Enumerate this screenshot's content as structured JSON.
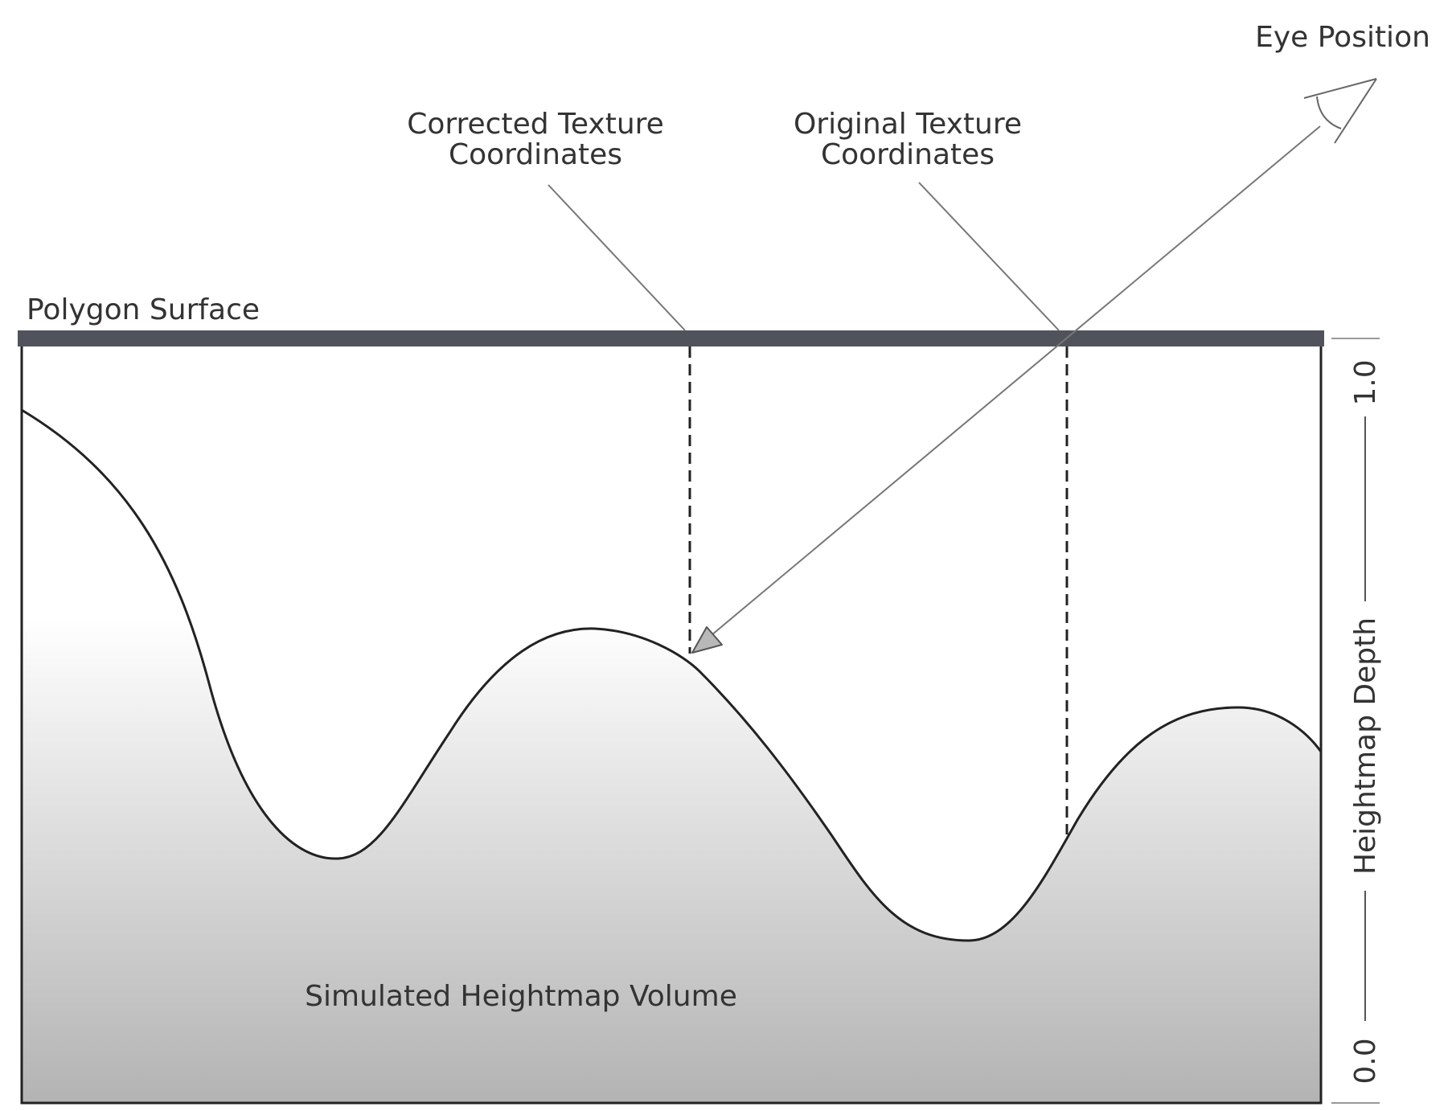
{
  "labels": {
    "eye_position": "Eye Position",
    "corrected_line1": "Corrected Texture",
    "corrected_line2": "Coordinates",
    "original_line1": "Original Texture",
    "original_line2": "Coordinates",
    "polygon_surface": "Polygon Surface",
    "simulated_volume": "Simulated Heightmap Volume"
  },
  "depth_axis": {
    "title": "Heightmap Depth",
    "max_label": "1.0",
    "min_label": "0.0"
  },
  "colors": {
    "surface_bar": "#50535b",
    "outline": "#222222",
    "ray": "#777777",
    "gradient_top": "#ffffff",
    "gradient_bottom": "#b3b3b3"
  }
}
